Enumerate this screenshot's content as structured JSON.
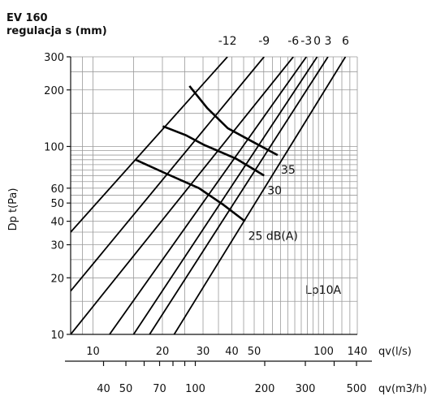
{
  "header": {
    "model": "EV 160",
    "setting_label": "regulacja s (mm)"
  },
  "chart_data": {
    "type": "line",
    "ylabel": "Dp t(Pa)",
    "xlabel": "qv(l/s)",
    "xlabel2": "qv(m3/h)",
    "x_scale": "log",
    "y_scale": "log",
    "xlim": [
      8,
      140
    ],
    "ylim": [
      10,
      300
    ],
    "grid": true,
    "y_ticks": [
      10,
      20,
      30,
      40,
      50,
      60,
      100,
      200,
      300
    ],
    "y_tick_labels": [
      "10",
      "20",
      "30",
      "40",
      "50",
      "60",
      "100",
      "200",
      "300"
    ],
    "x_ticks": [
      10,
      20,
      30,
      40,
      50,
      100,
      140
    ],
    "x_tick_labels": [
      "10",
      "20",
      "30",
      "40",
      "50",
      "100",
      "140"
    ],
    "x2_ticks": [
      40,
      50,
      70,
      100,
      200,
      300,
      500
    ],
    "x2_tick_labels": [
      "40",
      "50",
      "70",
      "100",
      "200",
      "300",
      "500"
    ],
    "series": [
      {
        "name": "-12",
        "x": [
          8,
          38.3
        ],
        "y": [
          35,
          300
        ]
      },
      {
        "name": "-9",
        "x": [
          8,
          55.2
        ],
        "y": [
          17,
          300
        ]
      },
      {
        "name": "-6",
        "x": [
          8,
          73.9
        ],
        "y": [
          10,
          300
        ]
      },
      {
        "name": "-3",
        "x": [
          11.8,
          84.2
        ],
        "y": [
          10,
          300
        ]
      },
      {
        "name": "0",
        "x": [
          15,
          93.8
        ],
        "y": [
          10,
          300
        ]
      },
      {
        "name": "3",
        "x": [
          17.6,
          104.5
        ],
        "y": [
          10,
          300
        ]
      },
      {
        "name": "6",
        "x": [
          22.5,
          124.4
        ],
        "y": [
          10,
          300
        ]
      }
    ],
    "noise_curves": [
      {
        "name": "35",
        "x": [
          26.2,
          31.3,
          38.4,
          47.8,
          63.2
        ],
        "y": [
          210,
          160,
          125,
          108,
          90
        ]
      },
      {
        "name": "30",
        "x": [
          20.1,
          25.2,
          30.3,
          41.8,
          55.2
        ],
        "y": [
          128,
          115,
          102,
          86,
          70
        ]
      },
      {
        "name": "25 dB(A)",
        "x": [
          15.3,
          20.6,
          28.8,
          36.7,
          45.6
        ],
        "y": [
          85,
          72,
          60,
          49,
          40
        ]
      }
    ],
    "annotations": [
      "Lp10A"
    ],
    "noise_label_unit": "dB(A)"
  }
}
